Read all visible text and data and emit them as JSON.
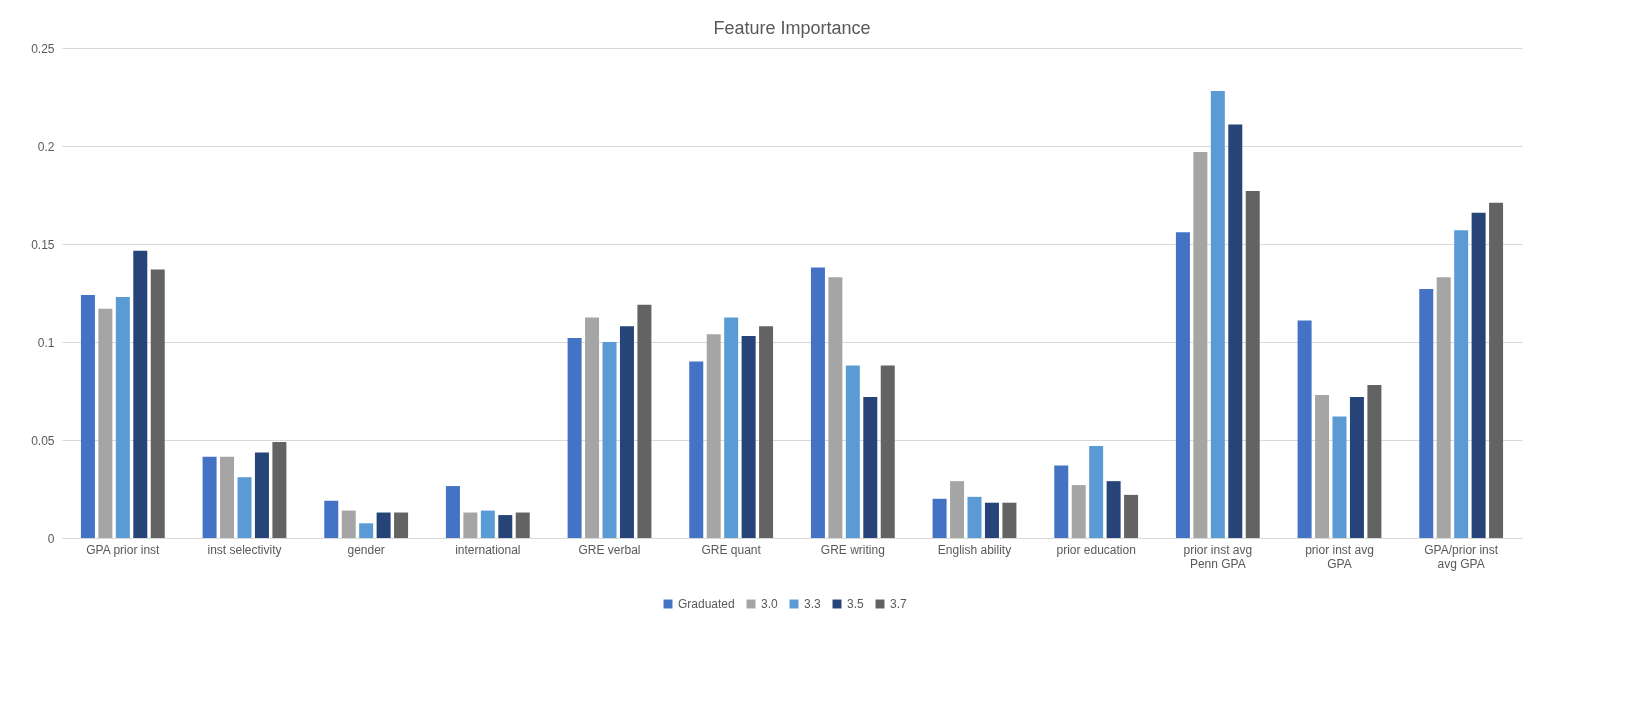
{
  "chart_data": {
    "type": "bar",
    "title": "Feature Importance",
    "categories": [
      "GPA prior inst",
      "inst selectivity",
      "gender",
      "international",
      "GRE verbal",
      "GRE quant",
      "GRE writing",
      "English ability",
      "prior education",
      "prior inst avg Penn GPA",
      "prior inst avg GPA",
      "GPA/prior inst avg GPA"
    ],
    "series": [
      {
        "name": "Graduated",
        "color": "#4472c4",
        "values": [
          0.124,
          0.0415,
          0.019,
          0.0265,
          0.102,
          0.09,
          0.138,
          0.02,
          0.037,
          0.156,
          0.111,
          0.127
        ]
      },
      {
        "name": "3.0",
        "color": "#a5a5a5",
        "values": [
          0.117,
          0.0415,
          0.014,
          0.013,
          0.1125,
          0.104,
          0.133,
          0.029,
          0.027,
          0.197,
          0.073,
          0.133
        ]
      },
      {
        "name": "3.3",
        "color": "#5b9bd5",
        "values": [
          0.123,
          0.031,
          0.0075,
          0.014,
          0.1,
          0.1125,
          0.088,
          0.021,
          0.047,
          0.228,
          0.062,
          0.157
        ]
      },
      {
        "name": "3.5",
        "color": "#264478",
        "values": [
          0.1465,
          0.0436,
          0.013,
          0.0117,
          0.108,
          0.103,
          0.072,
          0.018,
          0.029,
          0.211,
          0.072,
          0.166
        ]
      },
      {
        "name": "3.7",
        "color": "#636363",
        "values": [
          0.137,
          0.049,
          0.013,
          0.013,
          0.119,
          0.108,
          0.088,
          0.018,
          0.022,
          0.177,
          0.078,
          0.171
        ]
      }
    ],
    "ylim": [
      0,
      0.25
    ],
    "yticks": [
      0,
      0.05,
      0.1,
      0.15,
      0.2,
      0.25
    ],
    "grid": "y",
    "legend": "bottom"
  }
}
